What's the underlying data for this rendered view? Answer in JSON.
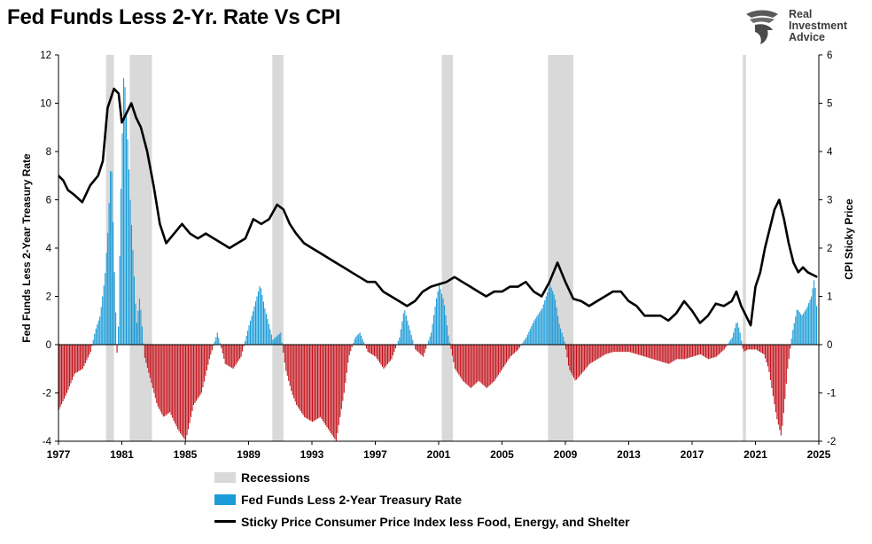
{
  "title": "Fed Funds Less 2-Yr. Rate Vs CPI",
  "logo": {
    "line1": "Real",
    "line2": "Investment",
    "line3": "Advice"
  },
  "colors": {
    "recession": "#d9d9d9",
    "positive": "#1a9bd7",
    "negative": "#c0141c",
    "line": "#000000"
  },
  "chart_data": {
    "type": "bar",
    "title": "Fed Funds Less 2-Yr. Rate Vs CPI",
    "xlabel": "",
    "ylabel": "Fed Funds Less 2-Year Treasury Rate",
    "y2label": "CPI Sticky Price",
    "xlim": [
      1977,
      2025
    ],
    "ylim": [
      -4,
      12
    ],
    "y2lim": [
      -2,
      6
    ],
    "xticks": [
      "1977",
      "1981",
      "1985",
      "1989",
      "1993",
      "1997",
      "2001",
      "2005",
      "2009",
      "2013",
      "2017",
      "2021",
      "2025"
    ],
    "yticks": [
      "-4",
      "-2",
      "0",
      "2",
      "4",
      "6",
      "8",
      "10",
      "12"
    ],
    "y2ticks": [
      "-2",
      "-1",
      "0",
      "1",
      "2",
      "3",
      "4",
      "5",
      "6"
    ],
    "grid": false,
    "legend_position": "bottom",
    "recessions": [
      [
        1980.0,
        1980.5
      ],
      [
        1981.5,
        1982.9
      ],
      [
        1990.5,
        1991.2
      ],
      [
        2001.2,
        2001.9
      ],
      [
        2007.9,
        2009.5
      ],
      [
        2020.2,
        2020.4
      ]
    ],
    "bar_series": {
      "name": "Fed Funds Less 2-Year Treasury Rate",
      "points": [
        [
          1977.0,
          -2.7
        ],
        [
          1977.5,
          -2.0
        ],
        [
          1978.0,
          -1.2
        ],
        [
          1978.5,
          -1.0
        ],
        [
          1979.0,
          -0.3
        ],
        [
          1979.3,
          0.6
        ],
        [
          1979.6,
          1.2
        ],
        [
          1979.9,
          2.8
        ],
        [
          1980.1,
          4.8
        ],
        [
          1980.3,
          8.0
        ],
        [
          1980.5,
          3.0
        ],
        [
          1980.7,
          -1.0
        ],
        [
          1980.9,
          6.0
        ],
        [
          1981.1,
          11.5
        ],
        [
          1981.3,
          9.0
        ],
        [
          1981.5,
          6.0
        ],
        [
          1981.7,
          3.5
        ],
        [
          1981.9,
          0.8
        ],
        [
          1982.1,
          2.0
        ],
        [
          1982.4,
          -0.5
        ],
        [
          1982.8,
          -1.5
        ],
        [
          1983.2,
          -2.5
        ],
        [
          1983.6,
          -3.0
        ],
        [
          1984.0,
          -2.8
        ],
        [
          1984.5,
          -3.5
        ],
        [
          1985.0,
          -4.0
        ],
        [
          1985.5,
          -2.5
        ],
        [
          1986.0,
          -2.0
        ],
        [
          1986.5,
          -0.6
        ],
        [
          1987.0,
          0.5
        ],
        [
          1987.5,
          -0.8
        ],
        [
          1988.0,
          -1.0
        ],
        [
          1988.5,
          -0.5
        ],
        [
          1989.0,
          0.8
        ],
        [
          1989.3,
          1.5
        ],
        [
          1989.7,
          2.5
        ],
        [
          1990.0,
          1.5
        ],
        [
          1990.5,
          0.2
        ],
        [
          1991.0,
          0.5
        ],
        [
          1991.3,
          -1.0
        ],
        [
          1991.7,
          -2.0
        ],
        [
          1992.0,
          -2.5
        ],
        [
          1992.5,
          -3.0
        ],
        [
          1993.0,
          -3.2
        ],
        [
          1993.5,
          -3.0
        ],
        [
          1994.0,
          -3.5
        ],
        [
          1994.5,
          -4.0
        ],
        [
          1995.0,
          -2.0
        ],
        [
          1995.3,
          -0.5
        ],
        [
          1995.7,
          0.3
        ],
        [
          1996.0,
          0.5
        ],
        [
          1996.5,
          -0.3
        ],
        [
          1997.0,
          -0.5
        ],
        [
          1997.5,
          -1.0
        ],
        [
          1998.0,
          -0.6
        ],
        [
          1998.5,
          0.3
        ],
        [
          1998.8,
          1.5
        ],
        [
          1999.0,
          1.0
        ],
        [
          1999.5,
          -0.2
        ],
        [
          2000.0,
          -0.5
        ],
        [
          2000.5,
          0.5
        ],
        [
          2000.8,
          1.8
        ],
        [
          2001.0,
          2.5
        ],
        [
          2001.3,
          1.8
        ],
        [
          2001.6,
          0.3
        ],
        [
          2002.0,
          -1.0
        ],
        [
          2002.5,
          -1.5
        ],
        [
          2003.0,
          -1.8
        ],
        [
          2003.5,
          -1.5
        ],
        [
          2004.0,
          -1.8
        ],
        [
          2004.5,
          -1.5
        ],
        [
          2005.0,
          -1.0
        ],
        [
          2005.5,
          -0.5
        ],
        [
          2006.0,
          -0.2
        ],
        [
          2006.5,
          0.3
        ],
        [
          2007.0,
          1.0
        ],
        [
          2007.5,
          1.5
        ],
        [
          2008.0,
          2.5
        ],
        [
          2008.3,
          2.0
        ],
        [
          2008.6,
          0.8
        ],
        [
          2008.9,
          0.2
        ],
        [
          2009.2,
          -1.0
        ],
        [
          2009.6,
          -1.5
        ],
        [
          2010.0,
          -1.2
        ],
        [
          2010.5,
          -0.8
        ],
        [
          2011.0,
          -0.6
        ],
        [
          2011.5,
          -0.4
        ],
        [
          2012.0,
          -0.3
        ],
        [
          2012.5,
          -0.3
        ],
        [
          2013.0,
          -0.3
        ],
        [
          2013.5,
          -0.4
        ],
        [
          2014.0,
          -0.5
        ],
        [
          2014.5,
          -0.6
        ],
        [
          2015.0,
          -0.7
        ],
        [
          2015.5,
          -0.8
        ],
        [
          2016.0,
          -0.6
        ],
        [
          2016.5,
          -0.6
        ],
        [
          2017.0,
          -0.5
        ],
        [
          2017.5,
          -0.4
        ],
        [
          2018.0,
          -0.6
        ],
        [
          2018.5,
          -0.5
        ],
        [
          2019.0,
          -0.2
        ],
        [
          2019.5,
          0.3
        ],
        [
          2019.8,
          1.0
        ],
        [
          2020.0,
          0.5
        ],
        [
          2020.2,
          -0.3
        ],
        [
          2020.5,
          -0.2
        ],
        [
          2021.0,
          -0.2
        ],
        [
          2021.5,
          -0.4
        ],
        [
          2021.8,
          -1.0
        ],
        [
          2022.0,
          -1.8
        ],
        [
          2022.3,
          -3.0
        ],
        [
          2022.6,
          -3.8
        ],
        [
          2022.8,
          -2.5
        ],
        [
          2023.0,
          -1.0
        ],
        [
          2023.3,
          0.5
        ],
        [
          2023.6,
          1.5
        ],
        [
          2023.9,
          1.2
        ],
        [
          2024.2,
          1.5
        ],
        [
          2024.5,
          2.0
        ],
        [
          2024.7,
          2.8
        ],
        [
          2024.9,
          1.0
        ]
      ]
    },
    "line_series": {
      "name": "Sticky Price Consumer Price Index less Food, Energy, and Shelter",
      "axis": "right",
      "points": [
        [
          1977.0,
          3.5
        ],
        [
          1977.3,
          3.4
        ],
        [
          1977.6,
          3.2
        ],
        [
          1978.0,
          3.1
        ],
        [
          1978.5,
          2.95
        ],
        [
          1979.0,
          3.3
        ],
        [
          1979.5,
          3.5
        ],
        [
          1979.8,
          3.8
        ],
        [
          1980.1,
          4.9
        ],
        [
          1980.5,
          5.3
        ],
        [
          1980.8,
          5.2
        ],
        [
          1981.0,
          4.6
        ],
        [
          1981.3,
          4.8
        ],
        [
          1981.6,
          5.0
        ],
        [
          1981.9,
          4.7
        ],
        [
          1982.2,
          4.5
        ],
        [
          1982.6,
          4.0
        ],
        [
          1983.0,
          3.3
        ],
        [
          1983.4,
          2.5
        ],
        [
          1983.8,
          2.1
        ],
        [
          1984.3,
          2.3
        ],
        [
          1984.8,
          2.5
        ],
        [
          1985.3,
          2.3
        ],
        [
          1985.8,
          2.2
        ],
        [
          1986.3,
          2.3
        ],
        [
          1986.8,
          2.2
        ],
        [
          1987.3,
          2.1
        ],
        [
          1987.8,
          2.0
        ],
        [
          1988.3,
          2.1
        ],
        [
          1988.8,
          2.2
        ],
        [
          1989.3,
          2.6
        ],
        [
          1989.8,
          2.5
        ],
        [
          1990.3,
          2.6
        ],
        [
          1990.8,
          2.9
        ],
        [
          1991.2,
          2.8
        ],
        [
          1991.6,
          2.5
        ],
        [
          1992.0,
          2.3
        ],
        [
          1992.5,
          2.1
        ],
        [
          1993.0,
          2.0
        ],
        [
          1993.5,
          1.9
        ],
        [
          1994.0,
          1.8
        ],
        [
          1994.5,
          1.7
        ],
        [
          1995.0,
          1.6
        ],
        [
          1995.5,
          1.5
        ],
        [
          1996.0,
          1.4
        ],
        [
          1996.5,
          1.3
        ],
        [
          1997.0,
          1.3
        ],
        [
          1997.5,
          1.1
        ],
        [
          1998.0,
          1.0
        ],
        [
          1998.5,
          0.9
        ],
        [
          1999.0,
          0.8
        ],
        [
          1999.5,
          0.9
        ],
        [
          2000.0,
          1.1
        ],
        [
          2000.5,
          1.2
        ],
        [
          2001.0,
          1.25
        ],
        [
          2001.5,
          1.3
        ],
        [
          2002.0,
          1.4
        ],
        [
          2002.5,
          1.3
        ],
        [
          2003.0,
          1.2
        ],
        [
          2003.5,
          1.1
        ],
        [
          2004.0,
          1.0
        ],
        [
          2004.5,
          1.1
        ],
        [
          2005.0,
          1.1
        ],
        [
          2005.5,
          1.2
        ],
        [
          2006.0,
          1.2
        ],
        [
          2006.5,
          1.3
        ],
        [
          2007.0,
          1.1
        ],
        [
          2007.5,
          1.0
        ],
        [
          2008.0,
          1.3
        ],
        [
          2008.5,
          1.7
        ],
        [
          2009.0,
          1.3
        ],
        [
          2009.5,
          0.95
        ],
        [
          2010.0,
          0.9
        ],
        [
          2010.5,
          0.8
        ],
        [
          2011.0,
          0.9
        ],
        [
          2011.5,
          1.0
        ],
        [
          2012.0,
          1.1
        ],
        [
          2012.5,
          1.1
        ],
        [
          2013.0,
          0.9
        ],
        [
          2013.5,
          0.8
        ],
        [
          2014.0,
          0.6
        ],
        [
          2014.5,
          0.6
        ],
        [
          2015.0,
          0.6
        ],
        [
          2015.5,
          0.5
        ],
        [
          2016.0,
          0.65
        ],
        [
          2016.5,
          0.9
        ],
        [
          2017.0,
          0.7
        ],
        [
          2017.5,
          0.45
        ],
        [
          2018.0,
          0.6
        ],
        [
          2018.5,
          0.85
        ],
        [
          2019.0,
          0.8
        ],
        [
          2019.5,
          0.9
        ],
        [
          2019.8,
          1.1
        ],
        [
          2020.1,
          0.8
        ],
        [
          2020.4,
          0.6
        ],
        [
          2020.7,
          0.4
        ],
        [
          2021.0,
          1.2
        ],
        [
          2021.3,
          1.5
        ],
        [
          2021.6,
          2.0
        ],
        [
          2021.9,
          2.4
        ],
        [
          2022.2,
          2.8
        ],
        [
          2022.5,
          3.0
        ],
        [
          2022.8,
          2.6
        ],
        [
          2023.1,
          2.1
        ],
        [
          2023.4,
          1.7
        ],
        [
          2023.7,
          1.5
        ],
        [
          2024.0,
          1.6
        ],
        [
          2024.3,
          1.5
        ],
        [
          2024.6,
          1.45
        ],
        [
          2024.9,
          1.4
        ]
      ]
    }
  },
  "legend": [
    {
      "label": "Recessions"
    },
    {
      "label": "Fed Funds Less 2-Year Treasury Rate"
    },
    {
      "label": "Sticky Price Consumer Price Index less Food, Energy, and Shelter"
    }
  ]
}
